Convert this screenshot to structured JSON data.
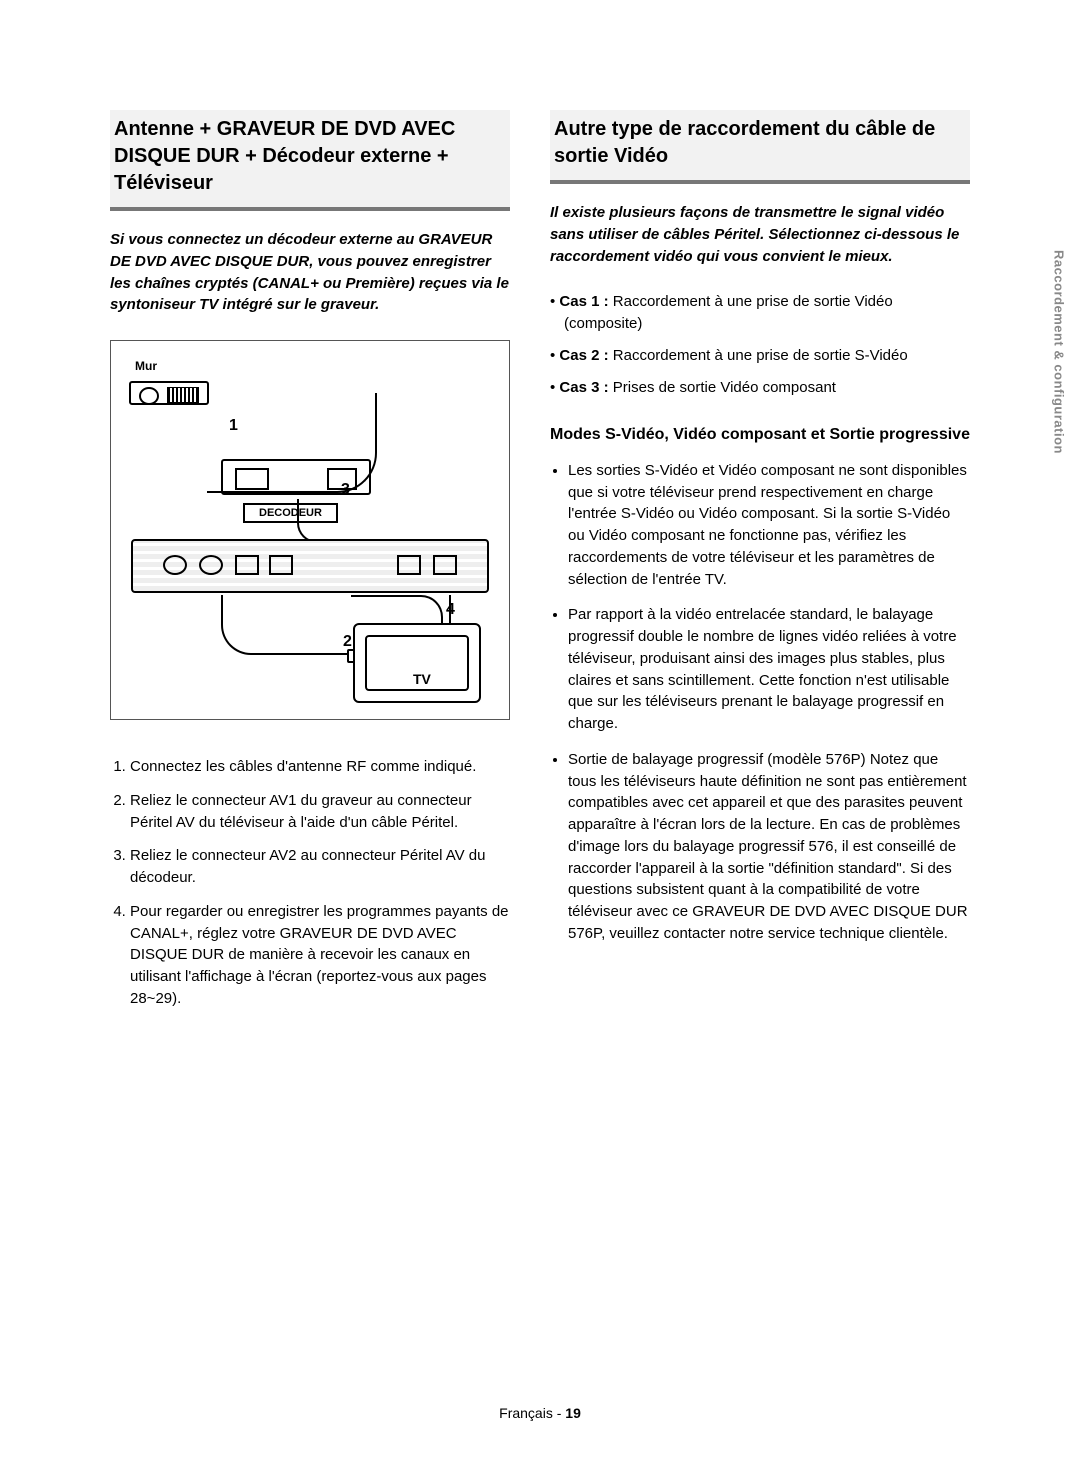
{
  "sideTab": "Raccordement & configuration",
  "left": {
    "title": "Antenne + GRAVEUR DE DVD AVEC DISQUE DUR + Décodeur externe + Téléviseur",
    "intro": "Si vous connectez un décodeur externe au GRAVEUR DE DVD AVEC DISQUE DUR, vous pouvez enregistrer les chaînes cryptés (CANAL+ ou Première) reçues via le syntoniseur TV intégré sur le graveur.",
    "diagram": {
      "mur": "Mur",
      "decodeur": "DECODEUR",
      "tv": "TV",
      "n1": "1",
      "n2": "2",
      "n3": "3",
      "n4": "4"
    },
    "steps": [
      "Connectez les câbles d'antenne RF comme indiqué.",
      "Reliez le connecteur AV1 du graveur au connecteur Péritel AV du téléviseur à l'aide d'un câble Péritel.",
      "Reliez le connecteur AV2 au connecteur Péritel AV du décodeur.",
      "Pour regarder ou enregistrer les programmes payants de CANAL+, réglez votre GRAVEUR DE DVD AVEC DISQUE DUR de manière à recevoir les canaux en utilisant l'affichage à l'écran (reportez-vous aux pages 28~29)."
    ]
  },
  "right": {
    "title": "Autre type de raccordement du câble de sortie Vidéo",
    "intro": "Il existe plusieurs façons de transmettre le signal vidéo sans utiliser de câbles Péritel. Sélectionnez ci-dessous le raccordement vidéo qui vous convient le mieux.",
    "cases": [
      {
        "label": "Cas 1 :",
        "text": " Raccordement à une prise de sortie Vidéo (composite)"
      },
      {
        "label": "Cas 2 :",
        "text": " Raccordement à une prise de sortie S-Vidéo"
      },
      {
        "label": "Cas 3 :",
        "text": " Prises de sortie Vidéo composant"
      }
    ],
    "subTitle": "Modes S-Vidéo, Vidéo composant et Sortie progressive",
    "bullets": [
      "Les sorties S-Vidéo et Vidéo composant ne sont disponibles que si votre téléviseur prend respectivement en charge l'entrée S-Vidéo ou Vidéo composant. Si la sortie S-Vidéo ou Vidéo composant ne fonctionne pas, vérifiez les raccordements de votre téléviseur et les paramètres de sélection de l'entrée TV.",
      "Par rapport à la vidéo entrelacée standard, le balayage progressif double le nombre de lignes vidéo reliées à votre téléviseur, produisant ainsi des images plus stables, plus claires et sans scintillement. Cette fonction n'est utilisable que sur les téléviseurs prenant le balayage progressif en charge.",
      "Sortie de balayage progressif (modèle 576P) Notez que tous les téléviseurs haute définition ne sont pas entièrement compatibles avec cet appareil et que des parasites peuvent apparaître à l'écran lors de la lecture. En cas de problèmes d'image lors du balayage progressif 576, il est conseillé de raccorder l'appareil à la sortie \"définition standard\". Si des questions subsistent quant à la compatibilité de votre téléviseur avec ce GRAVEUR DE DVD AVEC DISQUE DUR 576P, veuillez contacter notre service technique clientèle."
    ]
  },
  "footer": {
    "lang": "Français",
    "sep": " - ",
    "page": "19"
  }
}
